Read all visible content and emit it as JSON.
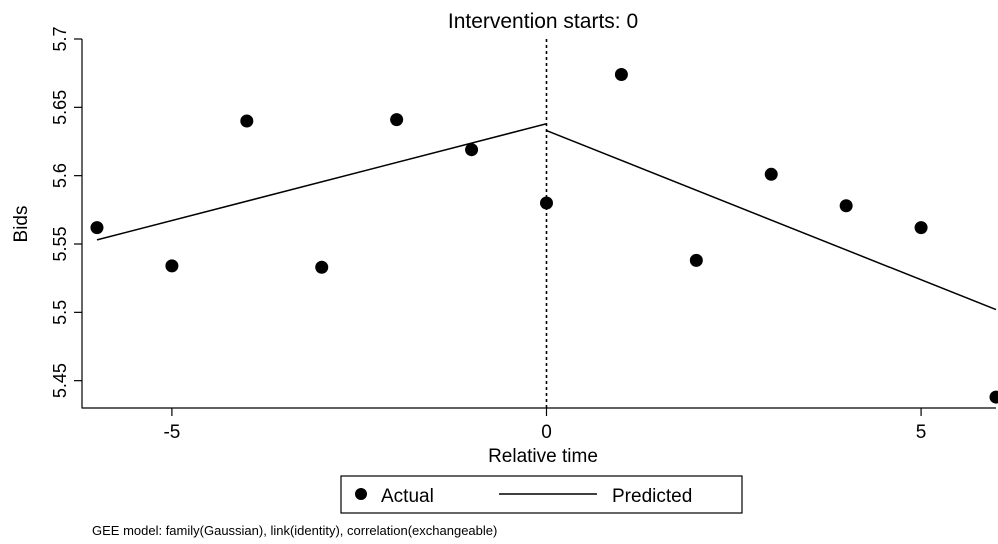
{
  "chart_data": {
    "type": "scatter",
    "title": "Intervention starts: 0",
    "xlabel": "Relative time",
    "ylabel": "Bids",
    "xlim": [
      -6.2,
      6.0
    ],
    "ylim": [
      5.43,
      5.7
    ],
    "x_ticks": [
      {
        "value": -5,
        "label": "-5"
      },
      {
        "value": 0,
        "label": "0"
      },
      {
        "value": 5,
        "label": "5"
      }
    ],
    "y_ticks": [
      {
        "value": 5.45,
        "label": "5.45"
      },
      {
        "value": 5.5,
        "label": "5.5"
      },
      {
        "value": 5.55,
        "label": "5.55"
      },
      {
        "value": 5.6,
        "label": "5.6"
      },
      {
        "value": 5.65,
        "label": "5.65"
      },
      {
        "value": 5.7,
        "label": "5.7"
      }
    ],
    "intervention_x": 0,
    "grid": false,
    "legend_position": "bottom",
    "series": [
      {
        "name": "Actual",
        "kind": "points",
        "points": [
          {
            "x": -6,
            "y": 5.562
          },
          {
            "x": -5,
            "y": 5.534
          },
          {
            "x": -4,
            "y": 5.64
          },
          {
            "x": -3,
            "y": 5.533
          },
          {
            "x": -2,
            "y": 5.641
          },
          {
            "x": -1,
            "y": 5.619
          },
          {
            "x": 0,
            "y": 5.58
          },
          {
            "x": 1,
            "y": 5.674
          },
          {
            "x": 2,
            "y": 5.538
          },
          {
            "x": 3,
            "y": 5.601
          },
          {
            "x": 4,
            "y": 5.578
          },
          {
            "x": 5,
            "y": 5.562
          },
          {
            "x": 6,
            "y": 5.438
          }
        ]
      },
      {
        "name": "Predicted",
        "kind": "line",
        "segments": [
          [
            {
              "x": -6,
              "y": 5.553
            },
            {
              "x": 0,
              "y": 5.638
            }
          ],
          [
            {
              "x": 0,
              "y": 5.633
            },
            {
              "x": 6,
              "y": 5.502
            }
          ]
        ]
      }
    ],
    "note": "GEE model: family(Gaussian), link(identity), correlation(exchangeable)"
  }
}
